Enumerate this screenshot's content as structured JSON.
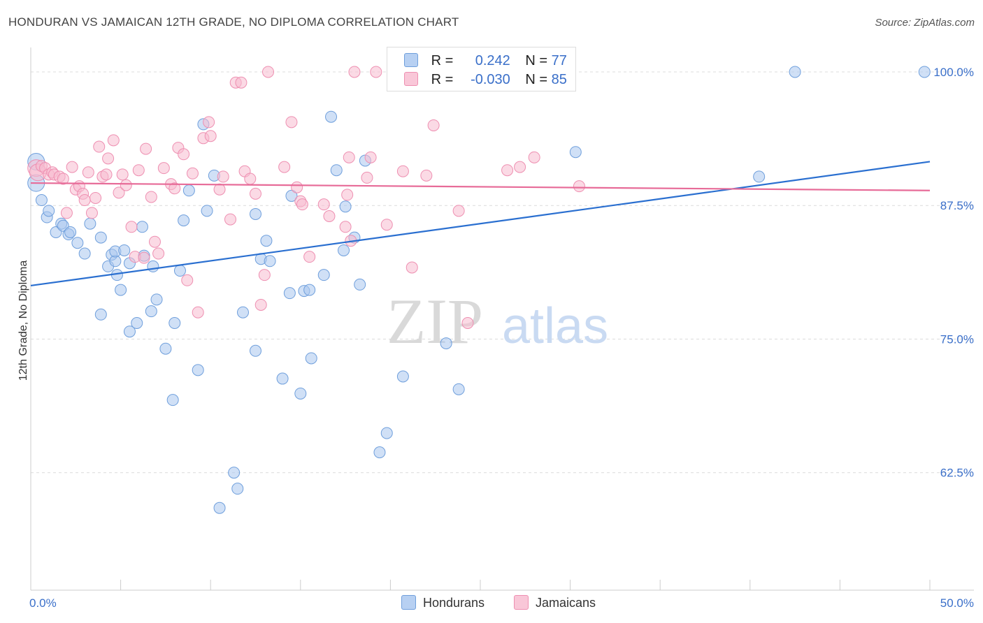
{
  "title": "HONDURAN VS JAMAICAN 12TH GRADE, NO DIPLOMA CORRELATION CHART",
  "source": "Source: ZipAtlas.com",
  "watermark": {
    "zip": "ZIP",
    "atlas": "atlas"
  },
  "legend": {
    "r_label": "R =",
    "n_label": "N =",
    "rows": [
      {
        "r": "0.242",
        "n": "77"
      },
      {
        "r": "-0.030",
        "n": "85"
      }
    ]
  },
  "colors": {
    "hondurans_fill": "#a9c6ee",
    "hondurans_stroke": "#6f9fdc",
    "hondurans_line": "#2a6fd0",
    "jamaicans_fill": "#f7bcd0",
    "jamaicans_stroke": "#ee8fb1",
    "jamaicans_line": "#e76b98",
    "tick_label": "#3a6fc9",
    "grid": "#dcdcdc"
  },
  "chart_data": {
    "type": "scatter",
    "title": "HONDURAN VS JAMAICAN 12TH GRADE, NO DIPLOMA CORRELATION CHART",
    "xlabel": "",
    "ylabel": "12th Grade, No Diploma",
    "xlim": [
      0,
      50
    ],
    "ylim": [
      51.5,
      101.5
    ],
    "x_tick_labels": [
      {
        "value": 0,
        "label": "0.0%"
      },
      {
        "value": 50,
        "label": "50.0%"
      }
    ],
    "y_tick_labels": [
      {
        "value": 100,
        "label": "100.0%"
      },
      {
        "value": 87.5,
        "label": "87.5%"
      },
      {
        "value": 75,
        "label": "75.0%"
      },
      {
        "value": 62.5,
        "label": "62.5%"
      }
    ],
    "grid": true,
    "legend_position": "top-center",
    "series": [
      {
        "name": "Hondurans",
        "r": 0.242,
        "n": 77,
        "trend": {
          "x": [
            0,
            50
          ],
          "y": [
            80.0,
            91.6
          ]
        },
        "x": [
          0.3,
          0.3,
          0.6,
          0.9,
          1.0,
          1.4,
          1.7,
          1.8,
          2.1,
          2.2,
          2.6,
          3.0,
          3.3,
          3.9,
          3.9,
          4.3,
          4.5,
          4.7,
          4.7,
          4.8,
          5.0,
          5.2,
          5.5,
          5.5,
          5.9,
          6.2,
          6.3,
          6.7,
          6.8,
          7.0,
          7.5,
          7.9,
          8.0,
          8.3,
          8.5,
          8.8,
          9.3,
          9.6,
          9.8,
          10.2,
          10.5,
          11.3,
          11.5,
          11.8,
          12.5,
          12.5,
          12.8,
          13.1,
          13.3,
          14.0,
          14.4,
          14.5,
          15.0,
          15.2,
          15.5,
          15.6,
          16.3,
          16.7,
          17.0,
          17.4,
          17.5,
          18.0,
          18.3,
          18.6,
          19.4,
          19.8,
          20.7,
          23.1,
          23.8,
          24.8,
          25.3,
          27.2,
          27.9,
          30.3,
          40.5,
          42.5,
          49.7
        ],
        "y": [
          91.6,
          89.6,
          88.0,
          86.4,
          87.0,
          85.0,
          85.8,
          85.6,
          84.8,
          85.0,
          84.0,
          83.0,
          85.8,
          84.5,
          77.3,
          81.8,
          82.9,
          82.3,
          83.2,
          81.0,
          79.6,
          83.3,
          82.1,
          75.7,
          76.5,
          85.5,
          82.8,
          77.6,
          81.8,
          78.7,
          74.1,
          69.3,
          76.5,
          81.4,
          86.1,
          88.9,
          72.1,
          95.1,
          87.0,
          90.3,
          59.2,
          62.5,
          61.0,
          77.5,
          86.7,
          73.9,
          82.5,
          84.2,
          82.3,
          71.3,
          79.3,
          88.4,
          69.9,
          79.5,
          79.6,
          73.2,
          81.0,
          95.8,
          90.8,
          83.3,
          87.4,
          84.5,
          80.1,
          91.7,
          64.4,
          66.2,
          71.5,
          74.6,
          70.3,
          100.0,
          100.0,
          100.0,
          100.0,
          92.5,
          90.2,
          100.0,
          100.0
        ]
      },
      {
        "name": "Jamaicans",
        "r": -0.03,
        "n": 85,
        "trend": {
          "x": [
            0,
            50
          ],
          "y": [
            89.6,
            88.9
          ]
        },
        "x": [
          0.3,
          0.4,
          0.6,
          0.8,
          1.0,
          1.2,
          1.3,
          1.6,
          1.8,
          2.0,
          2.3,
          2.5,
          2.7,
          2.9,
          3.0,
          3.2,
          3.4,
          3.6,
          3.8,
          4.0,
          4.2,
          4.3,
          4.6,
          4.9,
          5.1,
          5.3,
          5.6,
          5.8,
          6.0,
          6.3,
          6.4,
          6.7,
          6.9,
          7.1,
          7.4,
          7.8,
          8.0,
          8.2,
          8.5,
          8.7,
          9.0,
          9.3,
          9.6,
          9.9,
          10.0,
          10.5,
          10.7,
          11.1,
          11.4,
          11.7,
          11.9,
          12.2,
          12.5,
          12.8,
          13.0,
          13.2,
          14.1,
          14.5,
          14.8,
          15.0,
          15.1,
          15.5,
          16.3,
          16.6,
          17.5,
          17.6,
          17.7,
          17.8,
          18.0,
          18.7,
          18.9,
          19.2,
          19.8,
          20.7,
          20.9,
          21.2,
          22.0,
          22.4,
          23.4,
          23.8,
          24.3,
          26.5,
          27.2,
          28.0,
          30.5
        ],
        "y": [
          91.0,
          90.6,
          91.2,
          91.0,
          90.4,
          90.6,
          90.4,
          90.2,
          90.0,
          86.8,
          91.1,
          89.0,
          89.3,
          88.6,
          88.0,
          90.6,
          86.8,
          88.2,
          93.0,
          90.2,
          90.4,
          91.9,
          93.6,
          88.7,
          90.4,
          89.4,
          85.5,
          82.7,
          90.8,
          82.6,
          92.8,
          88.3,
          84.1,
          83.0,
          91.0,
          89.5,
          89.1,
          92.9,
          92.3,
          80.5,
          90.5,
          77.5,
          93.8,
          95.3,
          94.0,
          89.0,
          90.2,
          86.2,
          99.0,
          99.0,
          90.7,
          90.0,
          88.6,
          78.2,
          81.0,
          100.0,
          91.1,
          95.3,
          89.2,
          87.9,
          87.6,
          82.7,
          87.6,
          86.5,
          85.5,
          88.5,
          92.0,
          84.2,
          100.0,
          90.1,
          92.0,
          100.0,
          85.7,
          90.7,
          100.0,
          81.7,
          90.3,
          95.0,
          100.0,
          87.0,
          76.5,
          90.8,
          91.1,
          92.0,
          89.3
        ]
      }
    ]
  }
}
